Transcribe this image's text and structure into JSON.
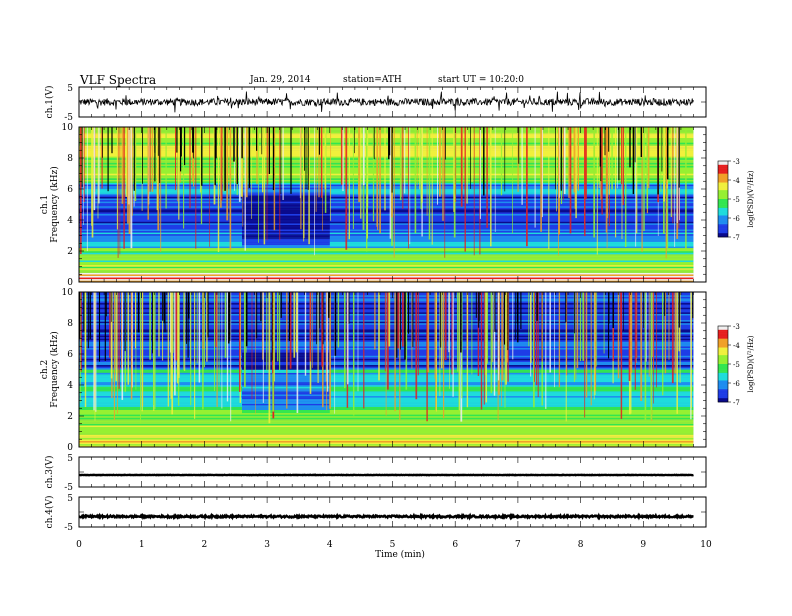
{
  "header": {
    "title": "VLF  Spectra",
    "date": "Jan. 29, 2014",
    "station": "station=ATH",
    "start": "start  UT  =    10:20:0"
  },
  "colors": {
    "spectrum": [
      "#000000",
      "#0a0a8c",
      "#1e3ce6",
      "#1e8cf0",
      "#1edcdc",
      "#32e650",
      "#96f032",
      "#f0f03c",
      "#f0a028",
      "#e61e1e",
      "#f0f0f0"
    ]
  },
  "chart_data": [
    {
      "type": "line",
      "panel": "ch1-waveform",
      "ylabel": "ch.1(V)",
      "ylim": [
        -5,
        5
      ],
      "yticks": [
        "5",
        "-5"
      ],
      "xlim": [
        0,
        10
      ],
      "series": [
        {
          "mean": 0.0,
          "envelope": [
            -1.2,
            1.2
          ],
          "spikes_to": [
            -3.5,
            3.5
          ]
        }
      ]
    },
    {
      "type": "heatmap",
      "panel": "ch1-spectrogram",
      "ylabel": "ch.1\nFrequency  (kHz)",
      "ylim": [
        0,
        10
      ],
      "yticks": [
        "0",
        "2",
        "4",
        "6",
        "8",
        "10"
      ],
      "xlim": [
        0,
        9.8
      ],
      "colorbar": {
        "label": "log(PSD)(V²/Hz)",
        "ticks": [
          "-3",
          "-4",
          "-5",
          "-6",
          "-7"
        ],
        "range": [
          -7,
          -3
        ]
      },
      "bands": [
        {
          "from": 0,
          "to": 0.6,
          "level": -3.4
        },
        {
          "from": 0.6,
          "to": 1.2,
          "level": -4.8
        },
        {
          "from": 1.2,
          "to": 2.2,
          "level": -5.2
        },
        {
          "from": 2.2,
          "to": 3.2,
          "level": -6.0
        },
        {
          "from": 3.2,
          "to": 5.6,
          "level": -6.4
        },
        {
          "from": 5.6,
          "to": 6.4,
          "level": -6.0
        },
        {
          "from": 6.4,
          "to": 8.0,
          "level": -5.0
        },
        {
          "from": 8.0,
          "to": 10,
          "level": -4.6
        }
      ],
      "quiet_interval_min": [
        2.6,
        4.0
      ]
    },
    {
      "type": "heatmap",
      "panel": "ch2-spectrogram",
      "ylabel": "ch.2\nFrequency  (kHz)",
      "ylim": [
        0,
        10
      ],
      "yticks": [
        "0",
        "2",
        "4",
        "6",
        "8",
        "10"
      ],
      "xlim": [
        0,
        9.8
      ],
      "colorbar": {
        "label": "log(PSD)(V²/Hz)",
        "ticks": [
          "-3",
          "-4",
          "-5",
          "-6",
          "-7"
        ],
        "range": [
          -7,
          -3
        ]
      },
      "bands": [
        {
          "from": 0,
          "to": 0.6,
          "level": -4.2
        },
        {
          "from": 0.6,
          "to": 1.4,
          "level": -4.6
        },
        {
          "from": 1.4,
          "to": 2.4,
          "level": -5.0
        },
        {
          "from": 2.4,
          "to": 5.0,
          "level": -5.6
        },
        {
          "from": 5.0,
          "to": 6.6,
          "level": -6.4
        },
        {
          "from": 6.6,
          "to": 10,
          "level": -6.6
        }
      ],
      "quiet_interval_min": [
        2.6,
        4.0
      ]
    },
    {
      "type": "line",
      "panel": "ch3-waveform",
      "ylabel": "ch.3(V)",
      "ylim": [
        -5,
        5
      ],
      "yticks": [
        "5",
        "-5"
      ],
      "xlim": [
        0,
        10
      ],
      "series": [
        {
          "mean": -1.0,
          "envelope": [
            -1.1,
            -0.9
          ]
        }
      ]
    },
    {
      "type": "line",
      "panel": "ch4-waveform",
      "ylabel": "ch.4(V)",
      "ylim": [
        -5,
        5
      ],
      "yticks": [
        "5",
        "-5"
      ],
      "xlim": [
        0,
        10
      ],
      "series": [
        {
          "mean": -1.5,
          "envelope": [
            -1.8,
            -1.2
          ]
        }
      ]
    },
    {
      "type": "axis",
      "xlabel": "Time  (min)",
      "xlim": [
        0,
        10
      ],
      "xticks": [
        "0",
        "1",
        "2",
        "3",
        "4",
        "5",
        "6",
        "7",
        "8",
        "9",
        "10"
      ]
    }
  ]
}
